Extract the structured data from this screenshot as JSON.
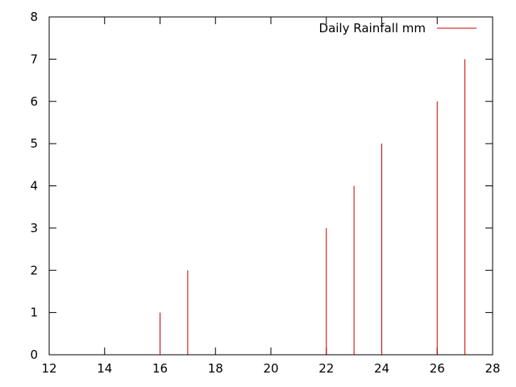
{
  "chart_data": {
    "type": "bar",
    "style": "impulses",
    "x": [
      16,
      17,
      22,
      23,
      24,
      26,
      27
    ],
    "series": [
      {
        "name": "Daily Rainfall mm",
        "values": [
          1,
          2,
          3,
          4,
          5,
          6,
          7
        ],
        "color": "#cc0000"
      }
    ],
    "xlim": [
      12,
      28
    ],
    "ylim": [
      0,
      8
    ],
    "xticks": [
      "12",
      "14",
      "16",
      "18",
      "20",
      "22",
      "24",
      "26",
      "28"
    ],
    "yticks": [
      "0",
      "1",
      "2",
      "3",
      "4",
      "5",
      "6",
      "7",
      "8"
    ],
    "grid": false,
    "legend_position": "top-right"
  }
}
